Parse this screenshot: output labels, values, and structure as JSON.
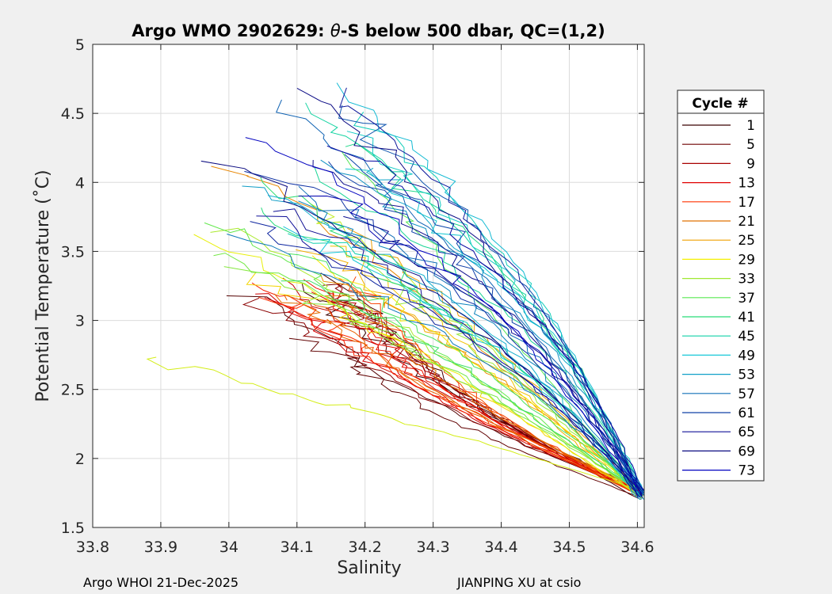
{
  "chart_data": {
    "type": "line",
    "title_prefix": "Argo WMO 2902629: ",
    "title_theta": "θ",
    "title_suffix": "-S below 500 dbar,  QC=(1,2)",
    "xlabel": "Salinity",
    "ylabel": "Potential Temperature (˚C)",
    "xlim": [
      33.8,
      34.61
    ],
    "ylim": [
      1.5,
      5
    ],
    "xticks": [
      33.8,
      33.9,
      34,
      34.1,
      34.2,
      34.3,
      34.4,
      34.5,
      34.6
    ],
    "xtick_labels": [
      "33.8",
      "33.9",
      "34",
      "34.1",
      "34.2",
      "34.3",
      "34.4",
      "34.5",
      "34.6"
    ],
    "yticks": [
      1.5,
      2,
      2.5,
      3,
      3.5,
      4,
      4.5,
      5
    ],
    "ytick_labels": [
      "1.5",
      "2",
      "2.5",
      "3",
      "3.5",
      "4",
      "4.5",
      "5"
    ],
    "grid": true,
    "legend": {
      "title": "Cycle #",
      "placement": "right-outside",
      "entries": [
        "1",
        "5",
        "9",
        "13",
        "17",
        "21",
        "25",
        "29",
        "33",
        "37",
        "41",
        "45",
        "49",
        "53",
        "57",
        "61",
        "65",
        "69",
        "73"
      ],
      "colors": [
        "#3a0000",
        "#6e0000",
        "#a80000",
        "#e00000",
        "#ff3200",
        "#e07000",
        "#f0a000",
        "#f5f000",
        "#a0e832",
        "#58e850",
        "#28dc78",
        "#10d0a8",
        "#18c8d8",
        "#10a0c8",
        "#1070b8",
        "#1040a8",
        "#101098",
        "#0a0a80",
        "#0000c0"
      ]
    },
    "series_groups": [
      {
        "cycles": "1-21",
        "colors": "red",
        "endpoint": [
          34.61,
          1.7
        ],
        "mid_points": [
          [
            34.45,
            2.3
          ],
          [
            34.35,
            2.65
          ],
          [
            34.25,
            2.9
          ],
          [
            34.15,
            3.1
          ],
          [
            34.1,
            3.2
          ]
        ]
      },
      {
        "cycles": "25-41",
        "colors": "yellow-green",
        "endpoint": [
          34.61,
          1.7
        ],
        "mid_points": [
          [
            34.45,
            2.5
          ],
          [
            34.35,
            2.9
          ],
          [
            34.25,
            3.3
          ],
          [
            34.15,
            3.7
          ],
          [
            34.05,
            4.1
          ]
        ]
      },
      {
        "cycles": "45-73",
        "colors": "cyan-blue",
        "endpoint": [
          34.61,
          1.7
        ],
        "mid_points": [
          [
            34.48,
            2.5
          ],
          [
            34.38,
            3.0
          ],
          [
            34.28,
            3.45
          ],
          [
            34.18,
            3.85
          ],
          [
            34.08,
            4.3
          ]
        ]
      }
    ]
  },
  "footer": {
    "left": "Argo WHOI 21-Dec-2025",
    "right": "JIANPING XU at csio"
  }
}
